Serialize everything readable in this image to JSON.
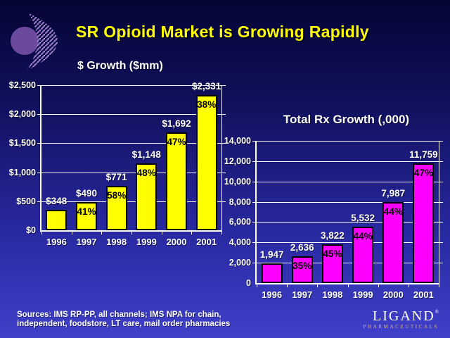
{
  "slide": {
    "title": "SR Opioid Market is Growing Rapidly",
    "sources_line1": "Sources: IMS RP-PP, all channels; IMS NPA for chain,",
    "sources_line2": "independent, foodstore, LT care, mail order pharmacies",
    "logo": {
      "brand": "LIGAND",
      "registered": "®",
      "tagline": "PHARMACEUTICALS"
    }
  },
  "colors": {
    "background_top": "#050534",
    "background_mid1": "#10105c",
    "background_mid2": "#2828a0",
    "background_bottom": "#4040ca",
    "title_yellow": "#ffff00",
    "axis_white": "#ffffff",
    "gridline": "#ffffff",
    "label_white": "#ffffff",
    "growth_label_black": "#000000",
    "bar_yellow": "#ffff00",
    "bar_magenta": "#ff00ff",
    "logo_circle_purple": "#6b4a9d",
    "logo_stripe_purple": "#9273c4",
    "tagline_tan": "#d6b28c"
  },
  "chart_data": [
    {
      "type": "bar",
      "title": "$ Growth ($mm)",
      "categories": [
        "1996",
        "1997",
        "1998",
        "1999",
        "2000",
        "2001"
      ],
      "values": [
        348,
        490,
        771,
        1148,
        1692,
        2331
      ],
      "value_labels": [
        "$348",
        "$490",
        "$771",
        "$1,148",
        "$1,692",
        "$2,331"
      ],
      "growth_labels": [
        "",
        "41%",
        "58%",
        "48%",
        "47%",
        "38%"
      ],
      "ylim": [
        0,
        2500
      ],
      "ytick_step": 500,
      "ytick_labels": [
        "$0",
        "$500",
        "$1,000",
        "$1,500",
        "$2,000",
        "$2,500"
      ],
      "bar_color": "#ffff00",
      "grid": true,
      "legend": "none"
    },
    {
      "type": "bar",
      "title": "Total Rx Growth (,000)",
      "categories": [
        "1996",
        "1997",
        "1998",
        "1999",
        "2000",
        "2001"
      ],
      "values": [
        1947,
        2636,
        3822,
        5532,
        7987,
        11759
      ],
      "value_labels": [
        "1,947",
        "2,636",
        "3,822",
        "5,532",
        "7,987",
        "11,759"
      ],
      "growth_labels": [
        "",
        "35%",
        "45%",
        "44%",
        "44%",
        "47%"
      ],
      "ylim": [
        0,
        14000
      ],
      "ytick_step": 2000,
      "ytick_labels": [
        "0",
        "2,000",
        "4,000",
        "6,000",
        "8,000",
        "10,000",
        "12,000",
        "14,000"
      ],
      "bar_color": "#ff00ff",
      "grid": true,
      "legend": "none"
    }
  ]
}
